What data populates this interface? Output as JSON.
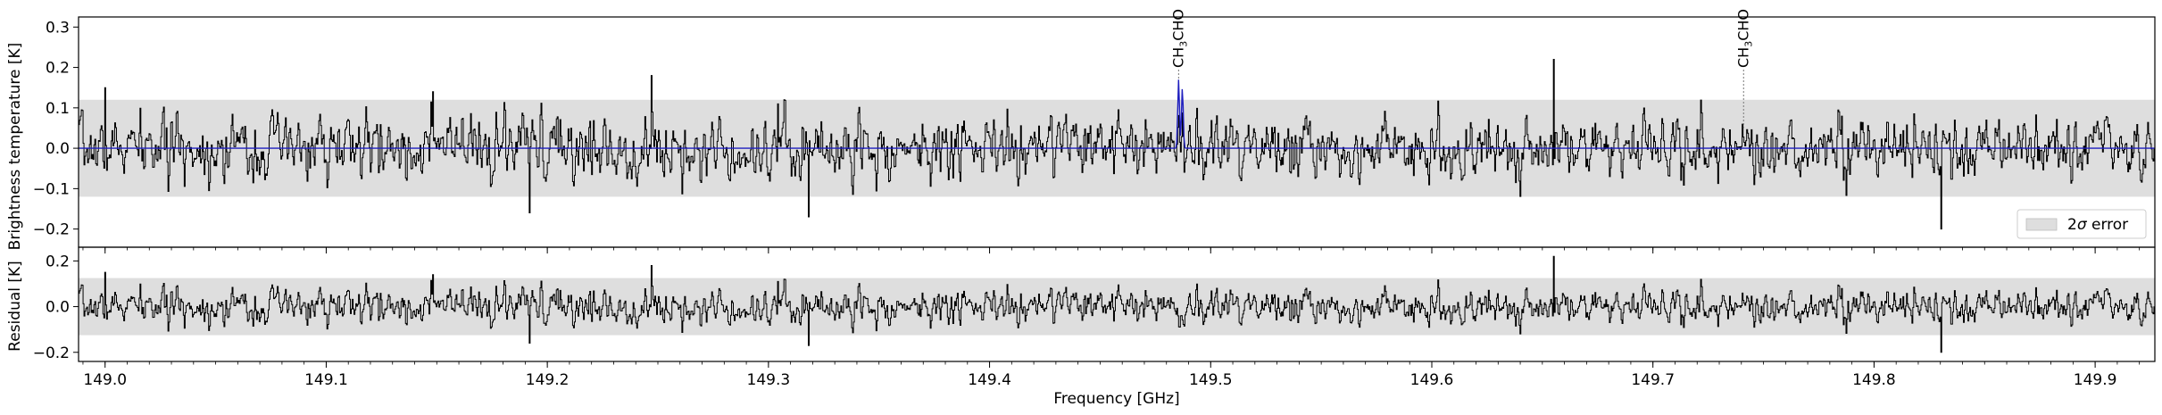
{
  "chart_data": [
    {
      "type": "line",
      "panel": "top",
      "ylabel": "Brightness temperature [K]",
      "xlim": [
        148.988,
        149.927
      ],
      "ylim": [
        -0.245,
        0.325
      ],
      "yticks": [
        -0.2,
        -0.1,
        0.0,
        0.1,
        0.2,
        0.3
      ],
      "ytick_labels": [
        "−0.2",
        "−0.1",
        "0.0",
        "0.1",
        "0.2",
        "0.3"
      ],
      "band": {
        "y0": -0.12,
        "y1": 0.12,
        "color": "#dedede"
      },
      "legend": {
        "label_prefix": "2",
        "label_symbol": "σ",
        "label_suffix": " error",
        "position": "lower right"
      },
      "series": [
        {
          "role": "observed",
          "color": "#000000",
          "noise_sigma": 0.06,
          "seed": 7,
          "spikes": [
            [
              149.0,
              0.15
            ],
            [
              149.148,
              0.14
            ],
            [
              149.247,
              0.18
            ],
            [
              149.304,
              0.11
            ],
            [
              149.655,
              0.22
            ],
            [
              149.83,
              -0.2
            ],
            [
              149.192,
              -0.16
            ],
            [
              149.318,
              -0.17
            ]
          ]
        },
        {
          "role": "model",
          "color": "#1f1fbf",
          "baseline": 0.0,
          "features": [
            {
              "x": 149.4855,
              "amp": 0.17
            },
            {
              "x": 149.4872,
              "amp": 0.15
            }
          ]
        }
      ],
      "annotations": [
        {
          "x": 149.4855,
          "label_main": "CH",
          "label_sub": "3",
          "label_end": "CHO",
          "line_to": 0.17
        },
        {
          "x": 149.741,
          "label_main": "CH",
          "label_sub": "3",
          "label_end": "CHO",
          "line_to": 0.05
        }
      ]
    },
    {
      "type": "line",
      "panel": "bottom",
      "ylabel": "Residual [K]",
      "xlabel": "Frequency [GHz]",
      "xlim": [
        148.988,
        149.927
      ],
      "ylim": [
        -0.24,
        0.26
      ],
      "yticks": [
        -0.2,
        0.0,
        0.2
      ],
      "ytick_labels": [
        "−0.2",
        "0.0",
        "0.2"
      ],
      "xticks": [
        149.0,
        149.1,
        149.2,
        149.3,
        149.4,
        149.5,
        149.6,
        149.7,
        149.8,
        149.9
      ],
      "xtick_labels": [
        "149.0",
        "149.1",
        "149.2",
        "149.3",
        "149.4",
        "149.5",
        "149.6",
        "149.7",
        "149.8",
        "149.9"
      ],
      "band": {
        "y0": -0.125,
        "y1": 0.125,
        "color": "#dedede"
      },
      "series": [
        {
          "role": "residual",
          "color": "#000000",
          "noise_sigma": 0.06,
          "seed": 7
        }
      ]
    }
  ]
}
